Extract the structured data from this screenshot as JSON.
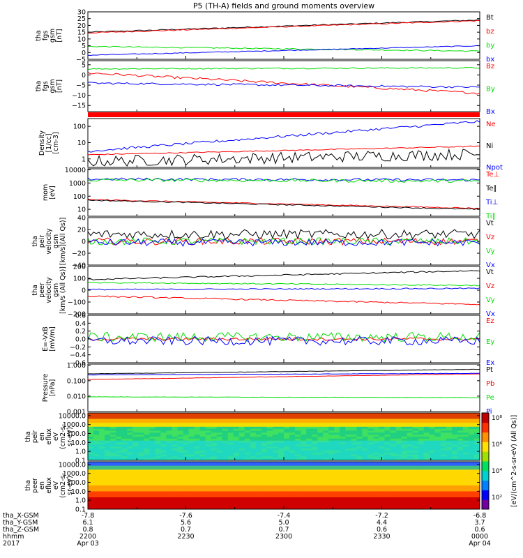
{
  "title": "P5 (TH-A) fields and ground moments overview",
  "colors": {
    "black": "#000000",
    "red": "#ff0000",
    "green": "#00dd00",
    "blue": "#0000ff"
  },
  "chart_data": [
    {
      "type": "line",
      "ylabel": [
        "tha",
        "fgs",
        "gsm",
        "[nT]"
      ],
      "ylim": [
        -5,
        30
      ],
      "yticks": [
        -5,
        0,
        5,
        10,
        15,
        20,
        25,
        30
      ],
      "series": [
        {
          "name": "Bt",
          "color": "#000000",
          "start": 15,
          "end": 24,
          "noise": 0.4
        },
        {
          "name": "bz",
          "color": "#ff0000",
          "start": 14.5,
          "end": 23.5,
          "noise": 0.4
        },
        {
          "name": "by",
          "color": "#00dd00",
          "start": 4.5,
          "end": 1,
          "noise": 0.4
        },
        {
          "name": "bx",
          "color": "#0000ff",
          "start": -2,
          "end": 5,
          "noise": 0.3
        }
      ]
    },
    {
      "type": "line",
      "ylabel": [
        "tha",
        "fgs",
        "gsm",
        "[nT]"
      ],
      "ylim": [
        -18,
        7
      ],
      "yticks": [
        -15,
        -10,
        -5,
        0,
        5
      ],
      "series": [
        {
          "name": "Bz",
          "color": "#ff0000",
          "start": 1,
          "end": -9,
          "noise": 0.6
        },
        {
          "name": "By",
          "color": "#00dd00",
          "start": 3,
          "end": 3.5,
          "noise": 0.3
        },
        {
          "name": "Bx",
          "color": "#0000ff",
          "start": -4,
          "end": -6,
          "noise": 0.5
        }
      ]
    },
    {
      "type": "line",
      "ylabel": [
        "Density",
        "[1/cc]",
        "[cm-3]"
      ],
      "ylim": [
        0.3,
        300
      ],
      "log": true,
      "ytick_labels": [
        {
          "v": 1,
          "t": "1"
        },
        {
          "v": 10,
          "t": "10"
        },
        {
          "v": 100,
          "t": "100"
        }
      ],
      "series": [
        {
          "name": "Ne",
          "color": "#ff0000",
          "start": 1.8,
          "end": 6,
          "noise": 0.03
        },
        {
          "name": "Ni",
          "color": "#000000",
          "start": 0.7,
          "end": 2,
          "noise": 0.35
        },
        {
          "name": "Npot",
          "color": "#0000ff",
          "start": 3,
          "end": 200,
          "noise": 0.08
        }
      ]
    },
    {
      "type": "line",
      "ylabel": [
        "mom",
        "[eV]"
      ],
      "ylim": [
        3,
        12000
      ],
      "log": true,
      "ytick_labels": [
        {
          "v": 10,
          "t": "10"
        },
        {
          "v": 100,
          "t": "100"
        },
        {
          "v": 1000,
          "t": "1000"
        },
        {
          "v": 10000,
          "t": "10000"
        }
      ],
      "series": [
        {
          "name": "Te⊥",
          "color": "#ff0000",
          "start": 55,
          "end": 12,
          "noise": 0.04
        },
        {
          "name": "Te∥",
          "color": "#000000",
          "start": 50,
          "end": 10,
          "noise": 0.04
        },
        {
          "name": "Ti⊥",
          "color": "#0000ff",
          "start": 2000,
          "end": 1700,
          "noise": 0.1
        },
        {
          "name": "Ti∥",
          "color": "#00dd00",
          "start": 1700,
          "end": 1400,
          "noise": 0.12
        }
      ]
    },
    {
      "type": "line",
      "ylabel": [
        "tha",
        "peir",
        "velocity",
        "gsm",
        "[km/s](All Qs)]"
      ],
      "ylim": [
        -40,
        40
      ],
      "yticks": [
        -40,
        -20,
        0,
        20,
        40
      ],
      "series": [
        {
          "name": "Vt",
          "color": "#000000",
          "start": 12,
          "end": 12,
          "noise": 8
        },
        {
          "name": "Vz",
          "color": "#ff0000",
          "start": 0,
          "end": 0,
          "noise": 6
        },
        {
          "name": "Vy",
          "color": "#00dd00",
          "start": 0,
          "end": 0,
          "noise": 6
        },
        {
          "name": "Vx",
          "color": "#0000ff",
          "start": -2,
          "end": -2,
          "noise": 6
        }
      ]
    },
    {
      "type": "line",
      "ylabel": [
        "tha",
        "peer",
        "velocity",
        "gsm",
        "[km/s (All Qs)]"
      ],
      "ylim": [
        -200,
        200
      ],
      "yticks": [
        -200,
        -100,
        0,
        100,
        200
      ],
      "series": [
        {
          "name": "Vt",
          "color": "#000000",
          "start": 90,
          "end": 165,
          "noise": 6
        },
        {
          "name": "Vz",
          "color": "#ff0000",
          "start": -50,
          "end": -120,
          "noise": 6
        },
        {
          "name": "Vy",
          "color": "#00dd00",
          "start": 65,
          "end": 40,
          "noise": 5
        },
        {
          "name": "Vx",
          "color": "#0000ff",
          "start": 5,
          "end": 15,
          "noise": 5
        }
      ]
    },
    {
      "type": "line",
      "ylabel": [
        "E=-VxB",
        "[mV/m]"
      ],
      "ylim": [
        -0.6,
        0.6
      ],
      "yticks": [
        -0.6,
        -0.4,
        -0.2,
        0,
        0.2,
        0.4,
        0.6
      ],
      "ytick_text": [
        "−0.6",
        "−0.4",
        "−0.2",
        "0.0",
        "0.2",
        "0.4",
        "0.6"
      ],
      "series": [
        {
          "name": "Ez",
          "color": "#ff0000",
          "start": 0,
          "end": 0,
          "noise": 0.04
        },
        {
          "name": "Ey",
          "color": "#00dd00",
          "start": 0.05,
          "end": 0.05,
          "noise": 0.12
        },
        {
          "name": "Ex",
          "color": "#0000ff",
          "start": -0.05,
          "end": -0.05,
          "noise": 0.11
        }
      ]
    },
    {
      "type": "line",
      "ylabel": [
        "Pressure",
        "[nPa]"
      ],
      "ylim": [
        0.001,
        1.2
      ],
      "log": true,
      "ytick_labels": [
        {
          "v": 0.001,
          "t": "0.001"
        },
        {
          "v": 0.01,
          "t": "0.010"
        },
        {
          "v": 0.1,
          "t": "0.100"
        },
        {
          "v": 1,
          "t": "1.000"
        }
      ],
      "series": [
        {
          "name": "Pt",
          "color": "#000000",
          "start": 0.28,
          "end": 0.55,
          "noise": 0.01
        },
        {
          "name": "Pb",
          "color": "#ff0000",
          "start": 0.12,
          "end": 0.28,
          "noise": 0.01
        },
        {
          "name": "Pe",
          "color": "#00dd00",
          "start": 0.009,
          "end": 0.008,
          "noise": 0.01
        },
        {
          "name": "Pi",
          "color": "#0000ff",
          "start": 0.24,
          "end": 0.3,
          "noise": 0.01
        }
      ]
    },
    {
      "type": "heatmap",
      "ylabel": [
        "tha",
        "peir",
        "en",
        "eflux",
        "eV",
        "(cm2-s-",
        "sr-eV)"
      ],
      "ylim": [
        0.1,
        20000
      ],
      "log": true,
      "ytick_labels": [
        {
          "v": 0.1,
          "t": "0.1"
        },
        {
          "v": 1,
          "t": "1.0"
        },
        {
          "v": 10,
          "t": "10.0"
        },
        {
          "v": 100,
          "t": "100.0"
        },
        {
          "v": 1000,
          "t": "1000.0"
        },
        {
          "v": 10000,
          "t": "10000.0"
        }
      ]
    },
    {
      "type": "heatmap",
      "ylabel": [
        "tha",
        "peer",
        "en",
        "eflux",
        "eV",
        "(cm2-s-",
        "sr-eV)"
      ],
      "ylim": [
        0.1,
        20000
      ],
      "log": true,
      "ytick_labels": [
        {
          "v": 0.1,
          "t": "0.1"
        },
        {
          "v": 1,
          "t": "1.0"
        },
        {
          "v": 10,
          "t": "10.0"
        },
        {
          "v": 100,
          "t": "100.0"
        },
        {
          "v": 1000,
          "t": "1000.0"
        },
        {
          "v": 10000,
          "t": "10000.0"
        }
      ]
    }
  ],
  "colorbar": {
    "label": "[eV/(cm^2-s-sr-eV) (All Qs)]",
    "ticks": [
      "10²",
      "10⁴",
      "10⁶",
      "10⁸"
    ]
  },
  "x_axis": {
    "rows": [
      {
        "label": "tha_X-GSM",
        "values": [
          "-7.8",
          "-7.6",
          "-7.4",
          "-7.2",
          "-6.8"
        ]
      },
      {
        "label": "tha_Y-GSM",
        "values": [
          "6.1",
          "5.6",
          "5.0",
          "4.4",
          "3.7"
        ]
      },
      {
        "label": "tha_Z-GSM",
        "values": [
          "0.8",
          "0.7",
          "0.7",
          "0.6",
          "0.6"
        ]
      },
      {
        "label": "hhmm",
        "values": [
          "2200",
          "2230",
          "2300",
          "2330",
          "0000"
        ]
      },
      {
        "label": "2017",
        "values": [
          "Apr 03",
          "",
          "",
          "",
          "Apr 04"
        ]
      }
    ]
  }
}
